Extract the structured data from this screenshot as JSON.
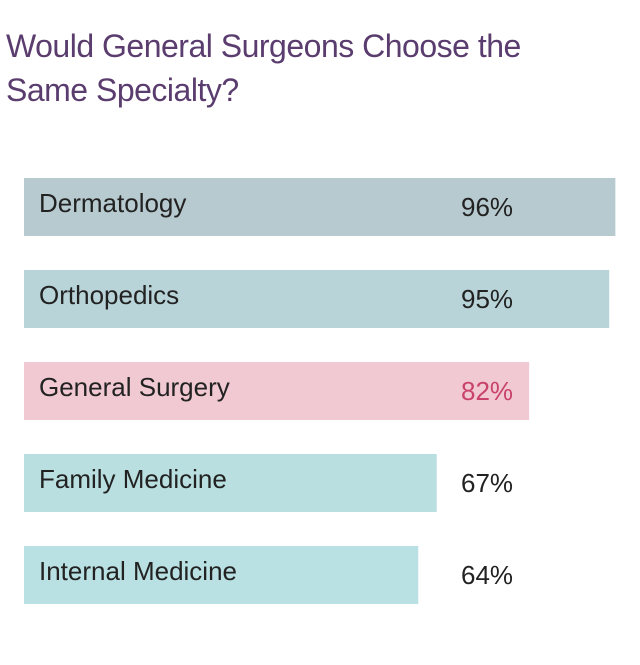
{
  "chart_data": {
    "type": "bar",
    "orientation": "horizontal",
    "title": "Would General Surgeons Choose the Same Specialty?",
    "categories": [
      "Dermatology",
      "Orthopedics",
      "General Surgery",
      "Family Medicine",
      "Internal Medicine"
    ],
    "values": [
      96,
      95,
      82,
      67,
      64
    ],
    "value_labels": [
      "96%",
      "95%",
      "82%",
      "67%",
      "64%"
    ],
    "colors": [
      "#b7cacf",
      "#b9d4d8",
      "#f0c9d2",
      "#b9dfe0",
      "#b9e0e2"
    ],
    "value_label_colors": [
      "#222222",
      "#222222",
      "#c9426a",
      "#222222",
      "#222222"
    ]
  }
}
